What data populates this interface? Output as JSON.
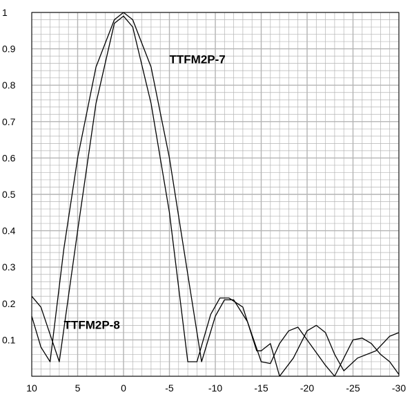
{
  "chart_data": {
    "type": "line",
    "title": "",
    "xlabel": "",
    "ylabel": "",
    "xlim": [
      10,
      -30
    ],
    "ylim": [
      0,
      1
    ],
    "x_ticks": [
      10,
      5,
      0,
      -5,
      -10,
      -15,
      -20,
      -25,
      -30
    ],
    "x_tick_labels": [
      "10",
      "5",
      "0",
      "-5",
      "-10",
      "-15",
      "-20",
      "-25",
      "-30"
    ],
    "y_ticks": [
      0.1,
      0.2,
      0.3,
      0.4,
      0.5,
      0.6,
      0.7,
      0.8,
      0.9,
      1
    ],
    "y_tick_labels": [
      "0.1",
      "0.2",
      "0.3",
      "0.4",
      "0.5",
      "0.6",
      "0.7",
      "0.8",
      "0.9",
      "1"
    ],
    "grid": true,
    "line_color": "#000000",
    "grid_color": "#b4b4b4",
    "series": [
      {
        "name": "TTFM2P-7",
        "label_at": {
          "x": -5,
          "y": 0.86
        },
        "points": [
          [
            10,
            0.165
          ],
          [
            9,
            0.08
          ],
          [
            8,
            0.04
          ],
          [
            6.5,
            0.35
          ],
          [
            5,
            0.6
          ],
          [
            3,
            0.85
          ],
          [
            1,
            0.98
          ],
          [
            0,
            1.0
          ],
          [
            -1,
            0.98
          ],
          [
            -3,
            0.85
          ],
          [
            -5,
            0.6
          ],
          [
            -7,
            0.28
          ],
          [
            -8.5,
            0.04
          ],
          [
            -10,
            0.165
          ],
          [
            -11,
            0.21
          ],
          [
            -12,
            0.21
          ],
          [
            -13.5,
            0.15
          ],
          [
            -15,
            0.04
          ],
          [
            -16,
            0.035
          ],
          [
            -17,
            0.09
          ],
          [
            -18,
            0.125
          ],
          [
            -19,
            0.135
          ],
          [
            -20,
            0.1
          ],
          [
            -22,
            0.03
          ],
          [
            -23,
            0.0
          ],
          [
            -25,
            0.1
          ],
          [
            -26,
            0.105
          ],
          [
            -27,
            0.09
          ],
          [
            -28,
            0.06
          ],
          [
            -29,
            0.04
          ],
          [
            -30,
            0.005
          ]
        ]
      },
      {
        "name": "TTFM2P-8",
        "label_at": {
          "x": 6.5,
          "y": 0.13
        },
        "points": [
          [
            10,
            0.22
          ],
          [
            9,
            0.19
          ],
          [
            7,
            0.04
          ],
          [
            5,
            0.4
          ],
          [
            3,
            0.75
          ],
          [
            1,
            0.97
          ],
          [
            0,
            0.99
          ],
          [
            -1,
            0.96
          ],
          [
            -3,
            0.75
          ],
          [
            -5,
            0.45
          ],
          [
            -7,
            0.04
          ],
          [
            -8,
            0.04
          ],
          [
            -9.5,
            0.17
          ],
          [
            -10.5,
            0.215
          ],
          [
            -11.5,
            0.215
          ],
          [
            -13,
            0.19
          ],
          [
            -14.5,
            0.07
          ],
          [
            -15,
            0.07
          ],
          [
            -16,
            0.09
          ],
          [
            -17,
            0.0
          ],
          [
            -18.5,
            0.05
          ],
          [
            -20,
            0.125
          ],
          [
            -21,
            0.14
          ],
          [
            -22,
            0.12
          ],
          [
            -23,
            0.06
          ],
          [
            -24,
            0.015
          ],
          [
            -25.5,
            0.05
          ],
          [
            -27.5,
            0.07
          ],
          [
            -29,
            0.11
          ],
          [
            -30,
            0.12
          ]
        ]
      }
    ]
  }
}
